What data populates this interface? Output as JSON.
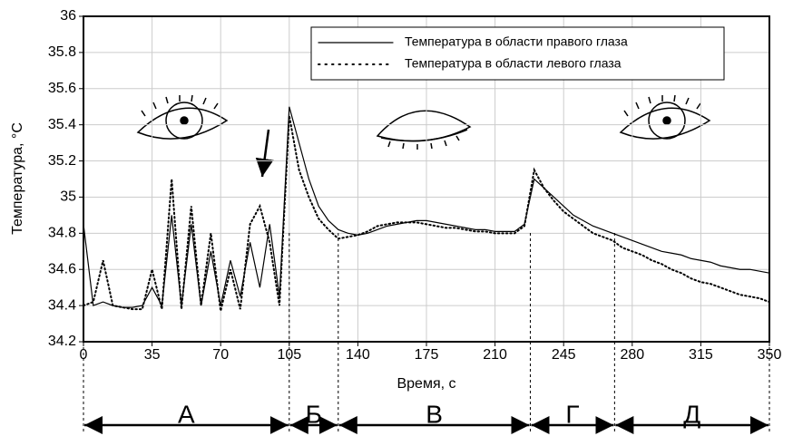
{
  "chart_data": {
    "type": "line",
    "x_label": "Время, с",
    "y_label": "Температура, °C",
    "x": [
      0,
      5,
      10,
      15,
      20,
      25,
      30,
      35,
      40,
      45,
      50,
      55,
      60,
      65,
      70,
      75,
      80,
      85,
      90,
      95,
      100,
      105,
      110,
      115,
      120,
      125,
      130,
      135,
      140,
      145,
      150,
      155,
      160,
      165,
      170,
      175,
      180,
      185,
      190,
      195,
      200,
      205,
      210,
      215,
      220,
      225,
      230,
      235,
      240,
      245,
      250,
      255,
      260,
      265,
      270,
      275,
      280,
      285,
      290,
      295,
      300,
      305,
      310,
      315,
      320,
      325,
      330,
      335,
      340,
      345,
      350
    ],
    "series": [
      {
        "name": "Температура в области правого глаза",
        "color": "#000000",
        "style": "solid",
        "values": [
          34.85,
          34.4,
          34.42,
          34.4,
          34.39,
          34.39,
          34.4,
          34.5,
          34.4,
          34.9,
          34.4,
          34.85,
          34.4,
          34.7,
          34.4,
          34.65,
          34.45,
          34.75,
          34.5,
          34.85,
          34.45,
          35.5,
          35.3,
          35.1,
          34.95,
          34.87,
          34.82,
          34.8,
          34.79,
          34.8,
          34.82,
          34.84,
          34.85,
          34.86,
          34.87,
          34.87,
          34.86,
          34.85,
          34.84,
          34.83,
          34.82,
          34.82,
          34.81,
          34.81,
          34.81,
          34.85,
          35.1,
          35.05,
          35.0,
          34.95,
          34.9,
          34.87,
          34.84,
          34.82,
          34.8,
          34.78,
          34.76,
          34.74,
          34.72,
          34.7,
          34.69,
          34.68,
          34.66,
          34.65,
          34.64,
          34.62,
          34.61,
          34.6,
          34.6,
          34.59,
          34.58
        ]
      },
      {
        "name": "Температура в области левого глаза",
        "color": "#000000",
        "style": "dotted",
        "values": [
          34.4,
          34.42,
          34.65,
          34.4,
          34.39,
          34.38,
          34.38,
          34.6,
          34.38,
          35.1,
          34.38,
          34.95,
          34.4,
          34.8,
          34.37,
          34.6,
          34.38,
          34.85,
          34.95,
          34.75,
          34.4,
          35.45,
          35.15,
          35.0,
          34.88,
          34.82,
          34.77,
          34.78,
          34.79,
          34.81,
          34.84,
          34.85,
          34.86,
          34.86,
          34.86,
          34.85,
          34.84,
          34.83,
          34.83,
          34.82,
          34.81,
          34.81,
          34.8,
          34.8,
          34.8,
          34.84,
          35.15,
          35.05,
          34.98,
          34.92,
          34.88,
          34.84,
          34.8,
          34.78,
          34.76,
          34.72,
          34.7,
          34.68,
          34.65,
          34.63,
          34.6,
          34.58,
          34.55,
          34.53,
          34.52,
          34.5,
          34.48,
          34.46,
          34.45,
          34.44,
          34.42
        ]
      }
    ],
    "xlim": [
      0,
      350
    ],
    "xticks": [
      0,
      35,
      70,
      105,
      140,
      175,
      210,
      245,
      280,
      315,
      350
    ],
    "ylim": [
      34.2,
      36
    ],
    "yticks": [
      34.2,
      34.4,
      34.6,
      34.8,
      35,
      35.2,
      35.4,
      35.6,
      35.8,
      36
    ],
    "grid": true,
    "legend": "upper right",
    "phases": [
      {
        "label": "А",
        "start": 0,
        "end": 105
      },
      {
        "label": "Б",
        "start": 105,
        "end": 130
      },
      {
        "label": "В",
        "start": 130,
        "end": 228
      },
      {
        "label": "Г",
        "start": 228,
        "end": 271
      },
      {
        "label": "Д",
        "start": 271,
        "end": 350
      }
    ]
  }
}
